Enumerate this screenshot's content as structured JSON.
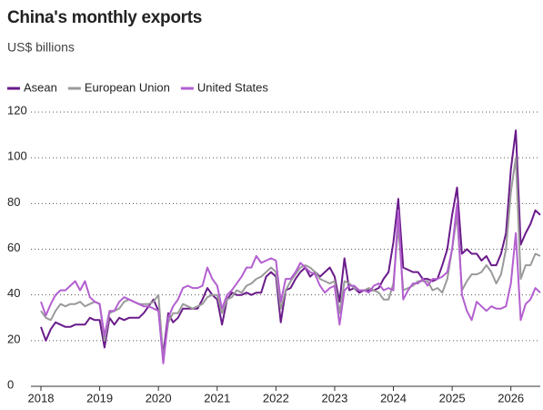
{
  "chart_data": {
    "type": "line",
    "title": "China's monthly exports",
    "subtitle": "US$ billions",
    "x": [
      2018,
      2018.083,
      2018.167,
      2018.25,
      2018.333,
      2018.417,
      2018.5,
      2018.583,
      2018.667,
      2018.75,
      2018.833,
      2018.917,
      2019,
      2019.083,
      2019.167,
      2019.25,
      2019.333,
      2019.417,
      2019.5,
      2019.583,
      2019.667,
      2019.75,
      2019.833,
      2019.917,
      2020,
      2020.083,
      2020.167,
      2020.25,
      2020.333,
      2020.417,
      2020.5,
      2020.583,
      2020.667,
      2020.75,
      2020.833,
      2020.917,
      2021,
      2021.083,
      2021.167,
      2021.25,
      2021.333,
      2021.417,
      2021.5,
      2021.583,
      2021.667,
      2021.75,
      2021.833,
      2021.917,
      2022,
      2022.083,
      2022.167,
      2022.25,
      2022.333,
      2022.417,
      2022.5,
      2022.583,
      2022.667,
      2022.75,
      2022.833,
      2022.917,
      2023,
      2023.083,
      2023.167,
      2023.25,
      2023.333,
      2023.417,
      2023.5,
      2023.583,
      2023.667,
      2023.75,
      2023.833,
      2023.917,
      2024,
      2024.083,
      2024.167,
      2024.25,
      2024.333,
      2024.417,
      2024.5,
      2024.583,
      2024.667,
      2024.75,
      2024.833,
      2024.917,
      2025,
      2025.083,
      2025.167,
      2025.25,
      2025.333,
      2025.417,
      2025.5,
      2025.583,
      2025.667,
      2025.75,
      2025.833,
      2025.917,
      2026,
      2026.083,
      2026.167,
      2026.25,
      2026.333,
      2026.417,
      2026.5
    ],
    "series": [
      {
        "name": "Asean",
        "color": "#6a1b8a",
        "values": [
          26,
          20,
          25,
          28,
          27,
          26,
          26,
          27,
          27,
          27,
          30,
          29,
          29,
          17,
          30,
          27,
          30,
          29,
          30,
          30,
          30,
          32,
          35,
          38,
          33,
          14,
          32,
          28,
          30,
          34,
          34,
          34,
          34,
          38,
          43,
          40,
          38,
          27,
          38,
          41,
          40,
          40,
          41,
          40,
          41,
          41,
          48,
          50,
          48,
          28,
          42,
          43,
          47,
          50,
          52,
          48,
          50,
          48,
          50,
          52,
          48,
          37,
          56,
          42,
          43,
          41,
          42,
          42,
          42,
          43,
          47,
          50,
          63,
          82,
          52,
          51,
          50,
          50,
          47,
          47,
          46,
          47,
          53,
          60,
          75,
          87,
          58,
          60,
          58,
          58,
          55,
          57,
          53,
          53,
          58,
          67,
          95,
          112,
          62,
          67,
          71,
          77,
          75
        ]
      },
      {
        "name": "European Union",
        "color": "#9a9a9a",
        "values": [
          33,
          30,
          29,
          33,
          36,
          35,
          36,
          36,
          37,
          35,
          36,
          37,
          36,
          20,
          32,
          33,
          34,
          37,
          38,
          37,
          36,
          36,
          36,
          37,
          40,
          12,
          28,
          32,
          32,
          36,
          35,
          34,
          35,
          36,
          39,
          40,
          40,
          32,
          38,
          39,
          42,
          41,
          44,
          45,
          47,
          48,
          50,
          52,
          50,
          34,
          42,
          46,
          49,
          52,
          53,
          52,
          50,
          47,
          46,
          45,
          46,
          32,
          46,
          45,
          43,
          42,
          42,
          43,
          42,
          41,
          38,
          38,
          45,
          70,
          42,
          43,
          44,
          46,
          46,
          46,
          42,
          43,
          41,
          47,
          60,
          75,
          42,
          46,
          49,
          49,
          50,
          53,
          50,
          45,
          49,
          60,
          85,
          100,
          47,
          53,
          53,
          58,
          57
        ]
      },
      {
        "name": "United States",
        "color": "#b35fd0",
        "values": [
          37,
          31,
          36,
          40,
          42,
          42,
          44,
          46,
          42,
          46,
          39,
          37,
          36,
          22,
          33,
          33,
          37,
          39,
          38,
          37,
          36,
          35,
          35,
          34,
          33,
          10,
          30,
          35,
          38,
          43,
          44,
          43,
          43,
          44,
          52,
          47,
          44,
          34,
          40,
          42,
          45,
          48,
          52,
          52,
          57,
          54,
          55,
          56,
          55,
          37,
          47,
          47,
          50,
          54,
          52,
          50,
          49,
          44,
          41,
          43,
          44,
          27,
          42,
          44,
          44,
          42,
          42,
          41,
          44,
          45,
          42,
          43,
          42,
          77,
          38,
          42,
          45,
          45,
          47,
          44,
          47,
          47,
          48,
          50,
          60,
          80,
          40,
          33,
          29,
          37,
          35,
          33,
          35,
          34,
          34,
          35,
          45,
          67,
          29,
          36,
          38,
          43,
          41
        ]
      }
    ],
    "xlim": [
      2018,
      2026.5
    ],
    "xticks": [
      2018,
      2019,
      2020,
      2021,
      2022,
      2023,
      2024,
      2025,
      2026
    ],
    "ylim": [
      0,
      120
    ],
    "yticks": [
      0,
      20,
      40,
      60,
      80,
      100,
      120
    ],
    "grid": true,
    "legend": "top-left"
  }
}
